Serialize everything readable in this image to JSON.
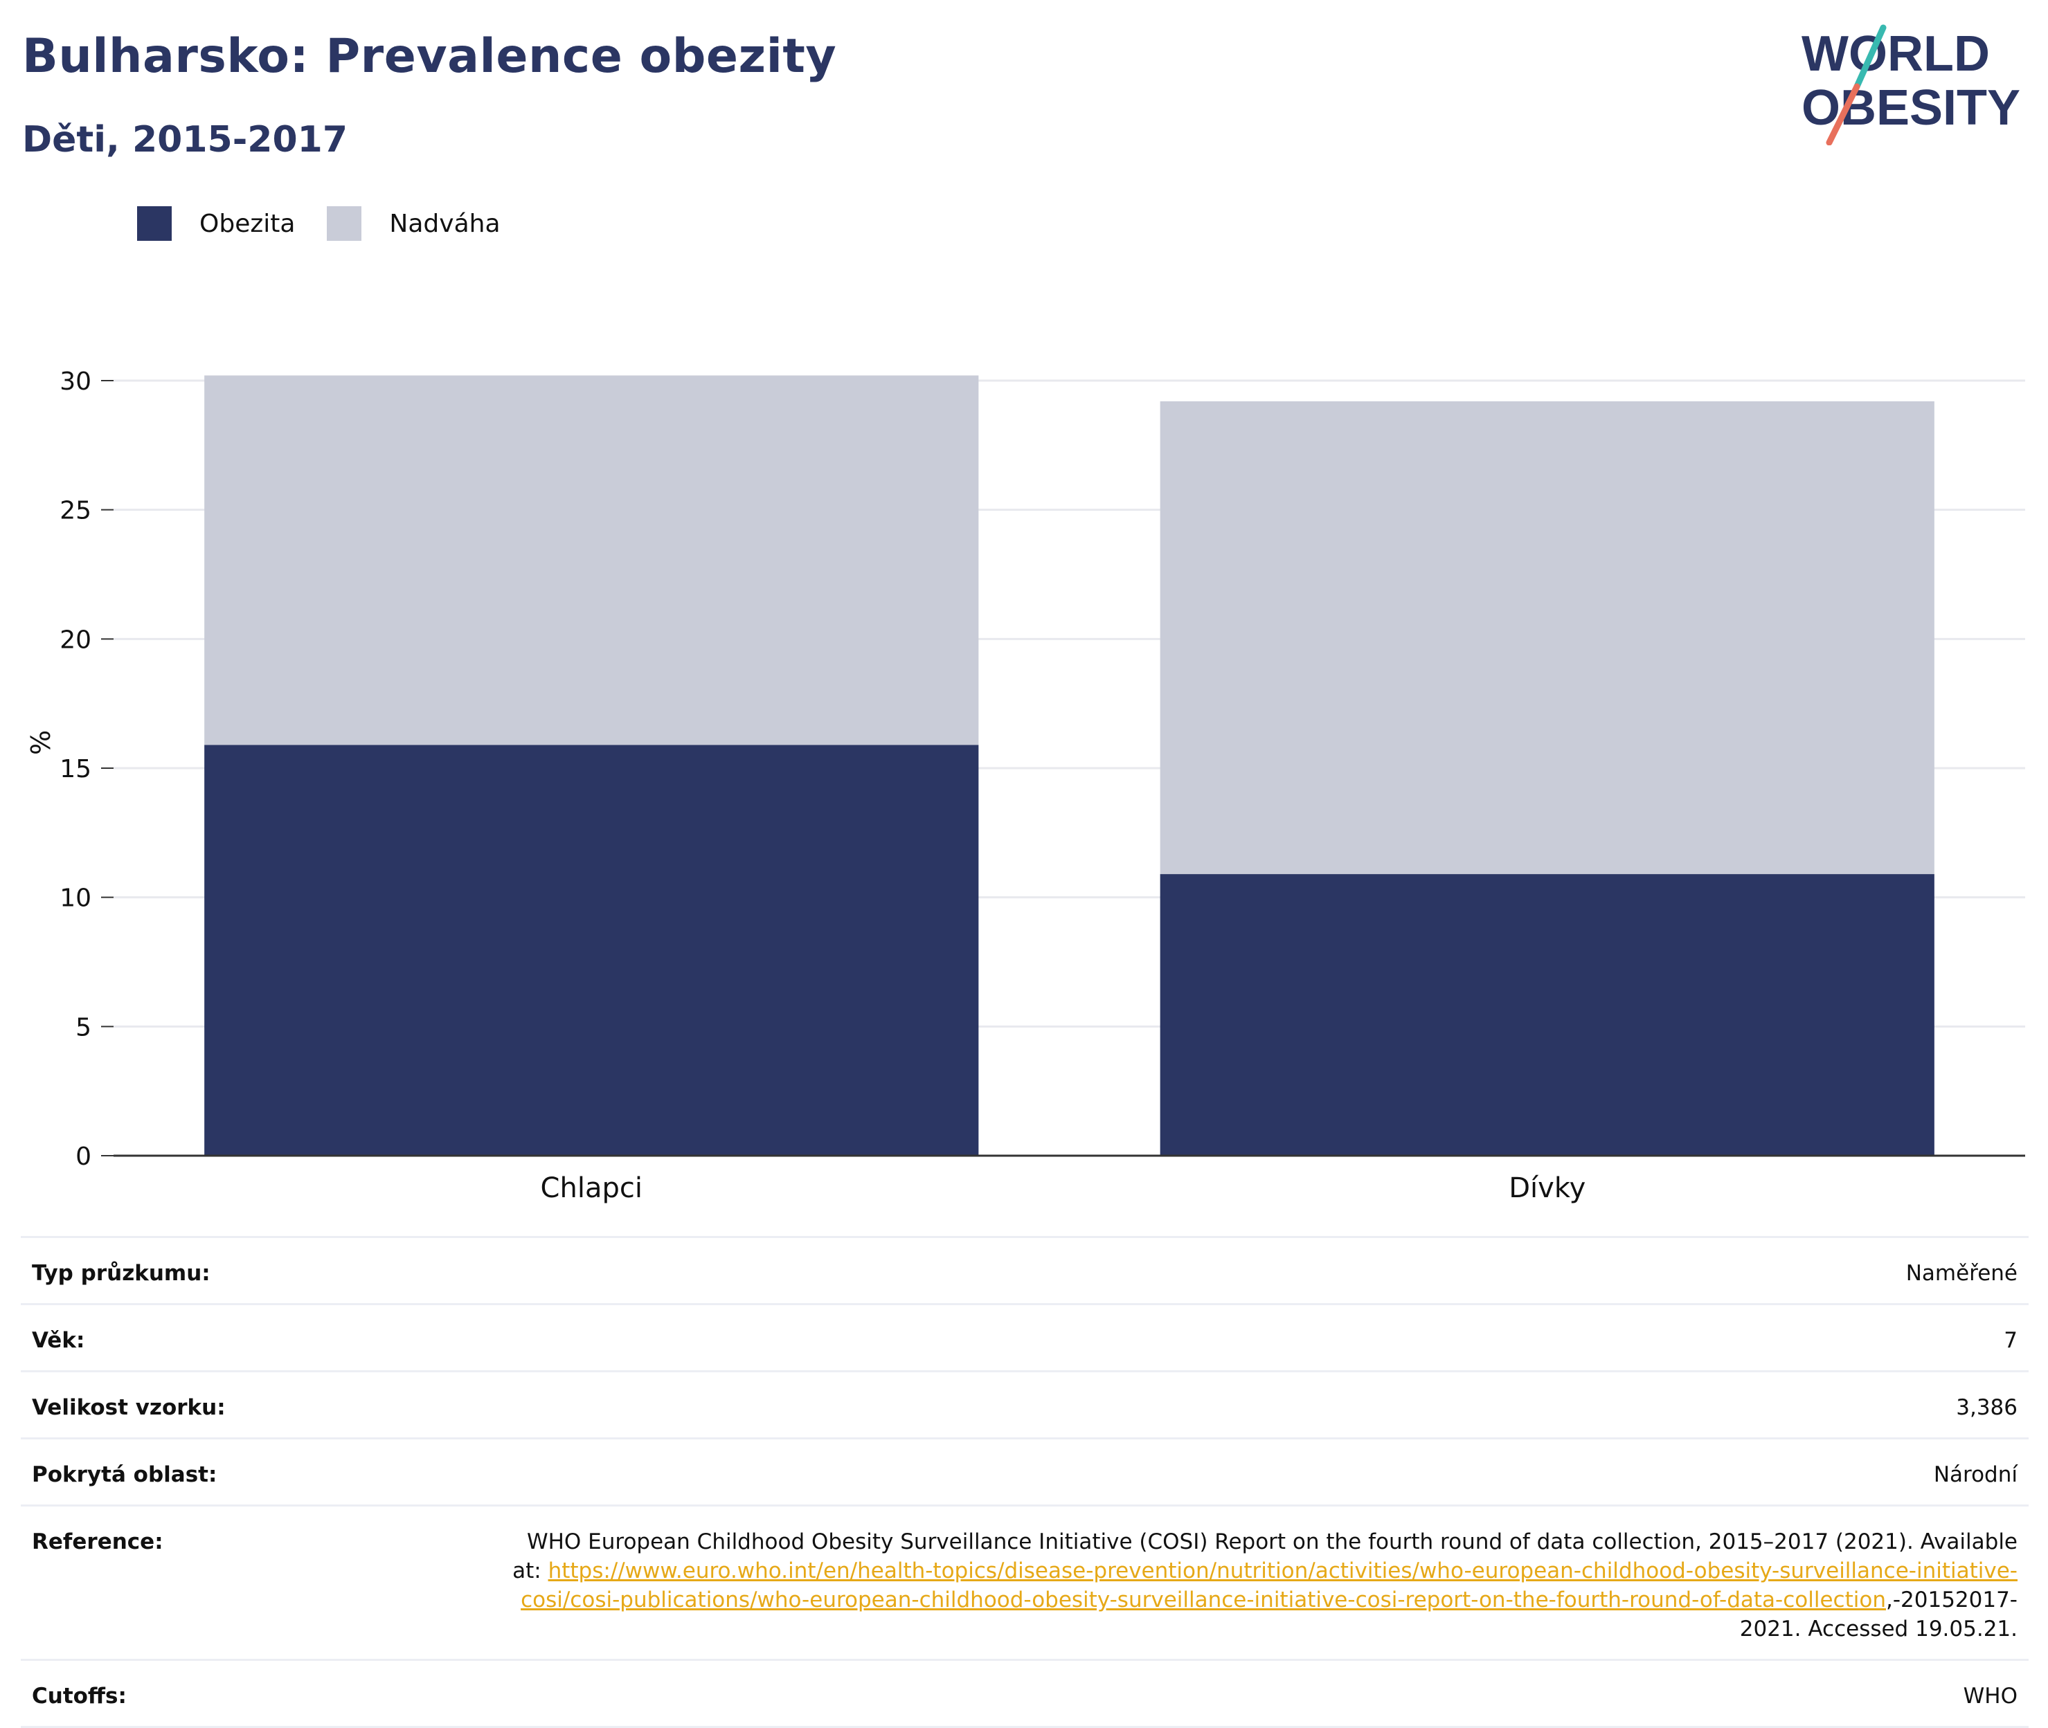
{
  "title": "Bulharsko: Prevalence obezity",
  "subtitle": "Děti, 2015-2017",
  "logo": {
    "line1": "WORLD",
    "line2": "OBESITY",
    "primary_color": "#2b3663",
    "accent_colors": [
      "#38b9b0",
      "#e8705c"
    ]
  },
  "legend": [
    {
      "label": "Obezita",
      "color": "#2b3663"
    },
    {
      "label": "Nadváha",
      "color": "#c9ccd8"
    }
  ],
  "chart_data": {
    "type": "bar",
    "stacked": true,
    "categories": [
      "Chlapci",
      "Dívky"
    ],
    "series": [
      {
        "name": "Obezita",
        "color": "#2b3663",
        "values": [
          15.9,
          10.9
        ]
      },
      {
        "name": "Nadváha",
        "color": "#c9ccd8",
        "values": [
          14.3,
          18.3
        ]
      }
    ],
    "ylabel": "%",
    "ylim": [
      0,
      30
    ],
    "yticks": [
      0,
      5,
      10,
      15,
      20,
      25,
      30
    ],
    "grid": true,
    "legend_position": "top-left"
  },
  "info": [
    {
      "label": "Typ průzkumu:",
      "value": "Naměřené"
    },
    {
      "label": "Věk:",
      "value": "7"
    },
    {
      "label": "Velikost vzorku:",
      "value": "3,386"
    },
    {
      "label": "Pokrytá oblast:",
      "value": "Národní"
    },
    {
      "label": "Cutoffs:",
      "value": "WHO"
    }
  ],
  "reference": {
    "label": "Reference:",
    "text_before": "WHO European Childhood Obesity Surveillance Initiative (COSI) Report on the fourth round of data collection, 2015–2017 (2021). Available at: ",
    "link": "https://www.euro.who.int/en/health-topics/disease-prevention/nutrition/activities/who-european-childhood-obesity-surveillance-initiative-cosi/cosi-publications/who-european-childhood-obesity-surveillance-initiative-cosi-report-on-the-fourth-round-of-data-collection",
    "text_after": ",-20152017-2021. Accessed 19.05.21."
  }
}
